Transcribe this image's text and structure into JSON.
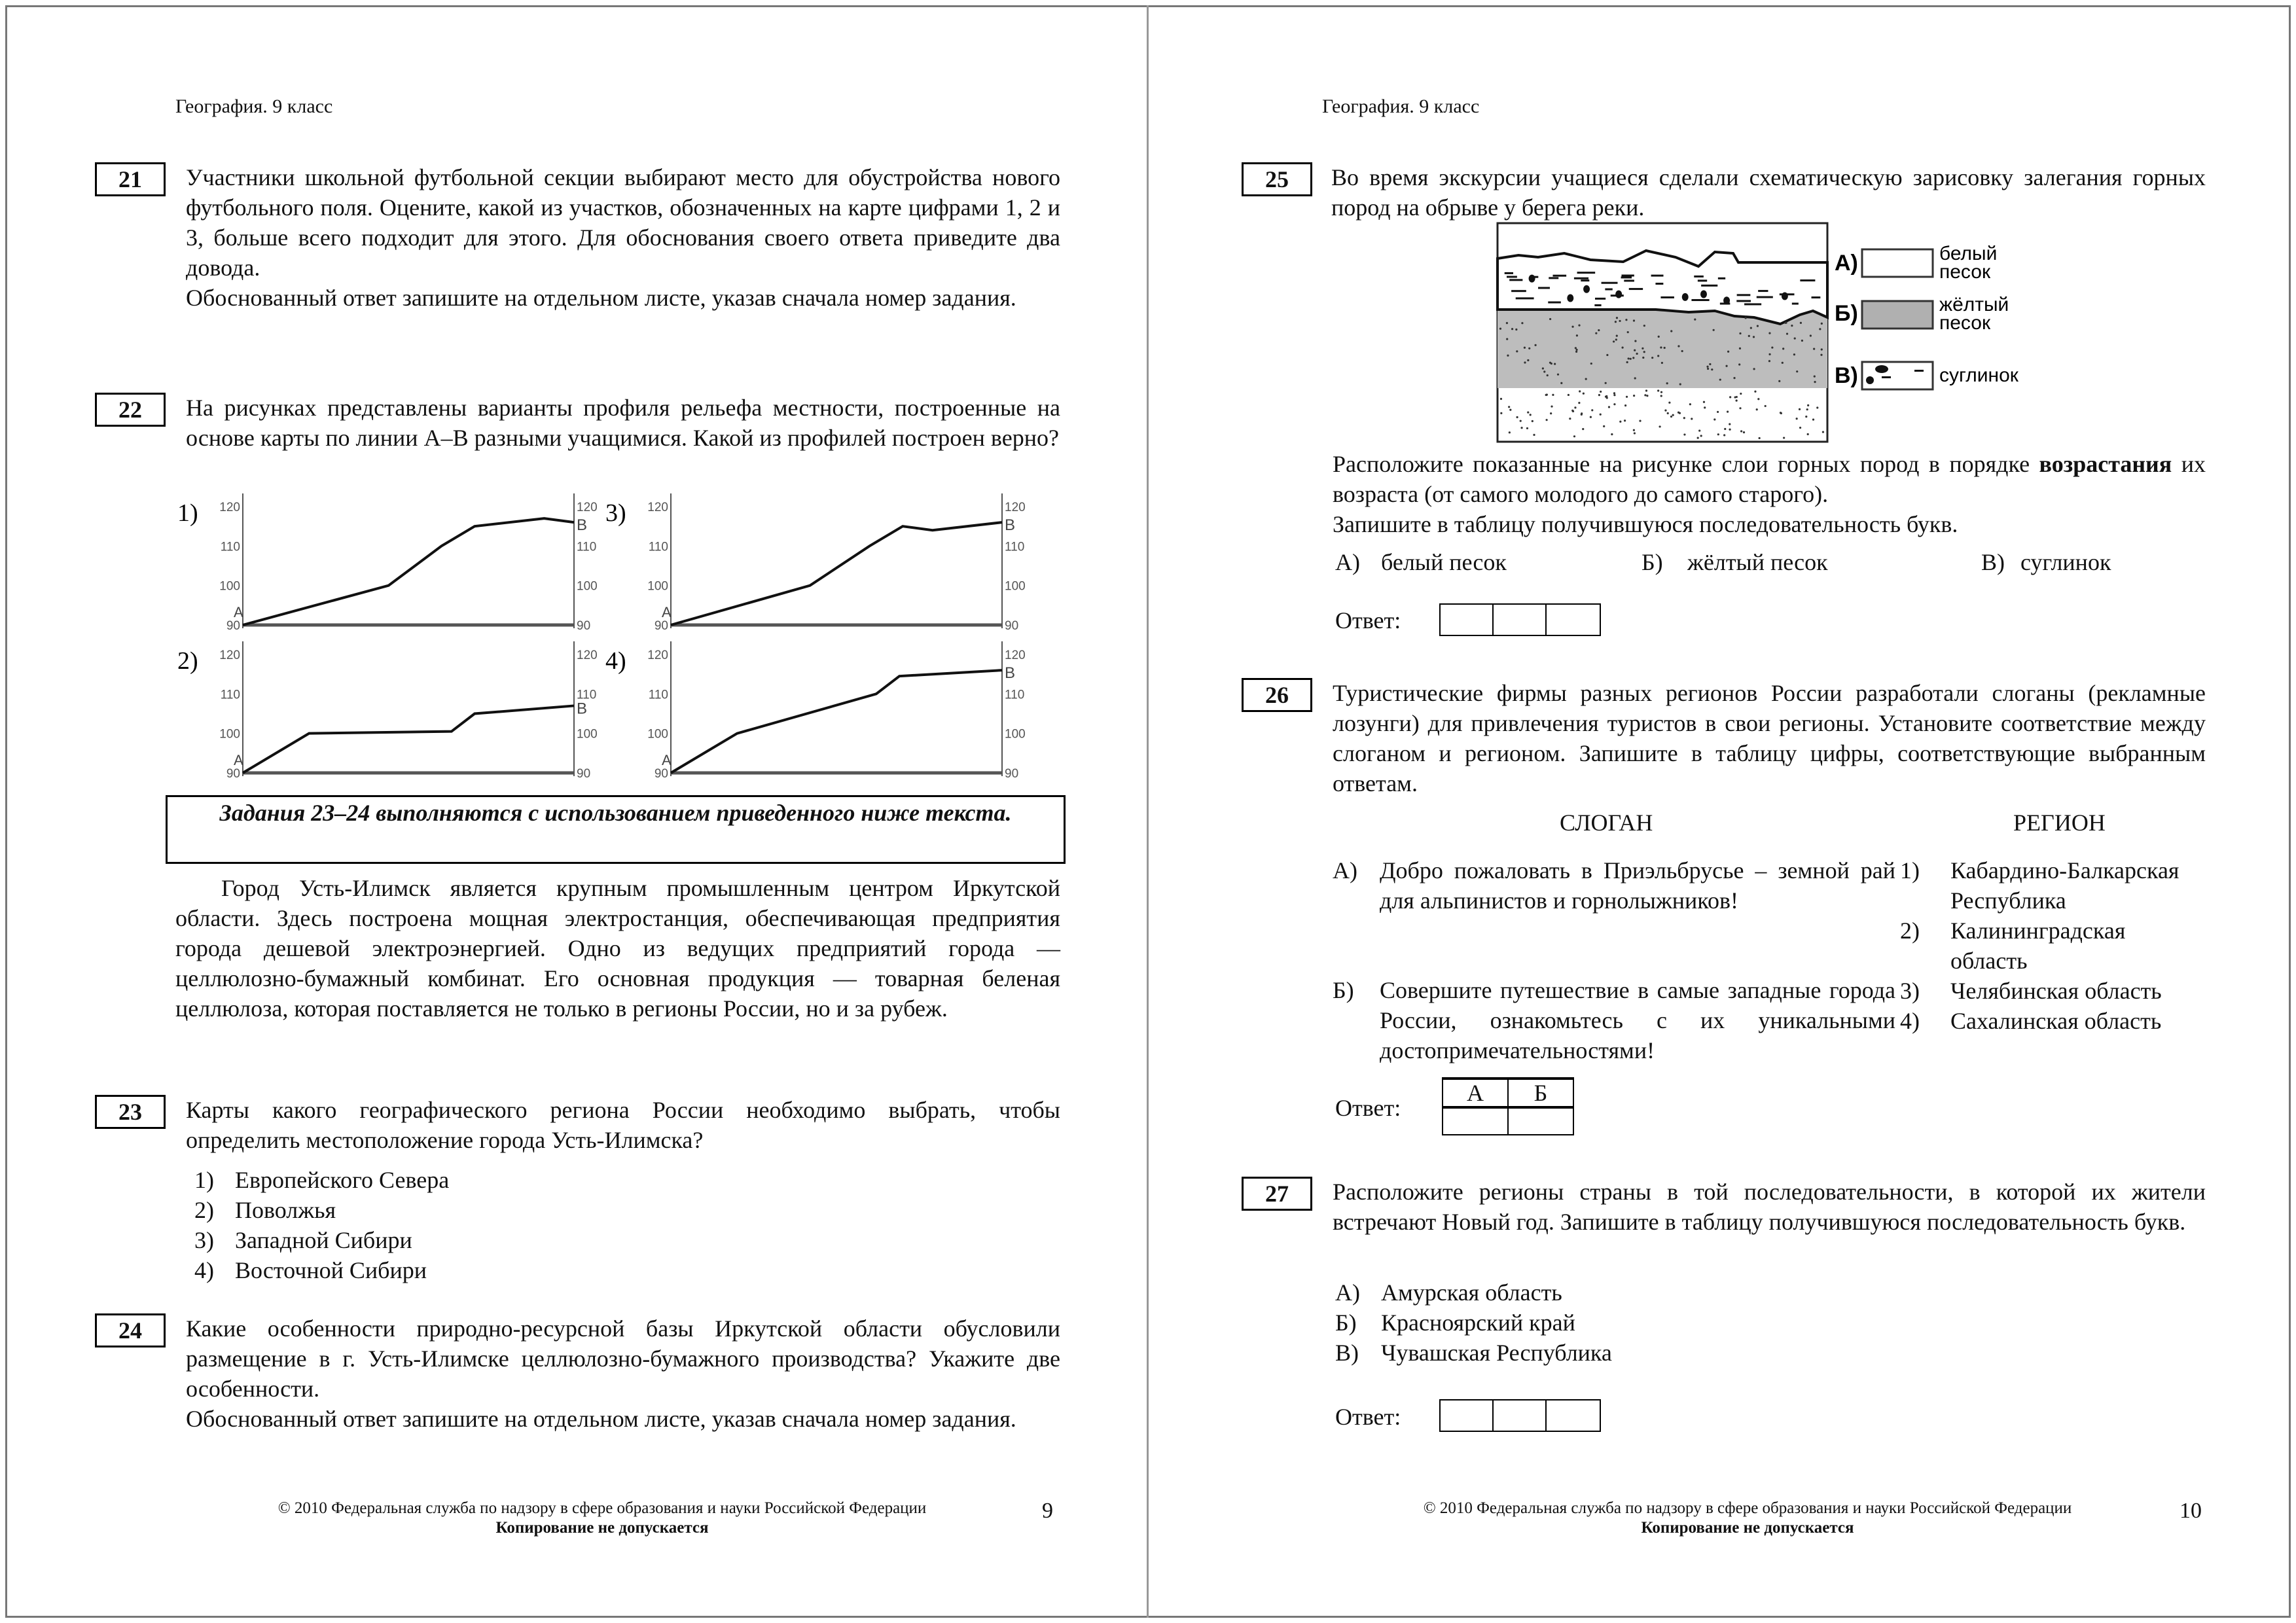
{
  "left_page": {
    "header": "География. 9 класс",
    "q21": {
      "num": "21",
      "text": "Участники школьной футбольной секции выбирают место для обустройства нового футбольного поля. Оцените, какой из участков, обозначенных на карте цифрами 1, 2 и 3, больше всего подходит для этого. Для обоснования своего ответа приведите два довода.",
      "note": "Обоснованный ответ запишите на отдельном листе, указав сначала номер задания."
    },
    "q22": {
      "num": "22",
      "text": "На рисунках представлены варианты профиля рельефа местности, построенные на основе карты по линии А–В разными учащимися. Какой из профилей построен верно?",
      "profiles": [
        {
          "label": "1)",
          "points": [
            [
              0,
              90
            ],
            [
              44,
              100
            ],
            [
              60,
              110
            ],
            [
              70,
              115
            ],
            [
              91,
              117
            ],
            [
              100,
              116
            ]
          ]
        },
        {
          "label": "2)",
          "points": [
            [
              0,
              90
            ],
            [
              20,
              100
            ],
            [
              63,
              100.5
            ],
            [
              70,
              105
            ],
            [
              100,
              107
            ]
          ]
        },
        {
          "label": "3)",
          "points": [
            [
              0,
              90
            ],
            [
              42,
              100
            ],
            [
              60,
              110
            ],
            [
              70,
              115
            ],
            [
              79,
              114
            ],
            [
              100,
              116
            ]
          ]
        },
        {
          "label": "4)",
          "points": [
            [
              0,
              90
            ],
            [
              20,
              100
            ],
            [
              62,
              110
            ],
            [
              69,
              114.5
            ],
            [
              100,
              116
            ]
          ]
        }
      ],
      "y_ticks": [
        "90",
        "100",
        "110",
        "120"
      ],
      "start_label": "A",
      "end_label": "B",
      "ylim": [
        90,
        120
      ]
    },
    "task_frame": "Задания 23–24 выполняются с использованием приведенного ниже текста.",
    "passage": "Город Усть-Илимск является крупным промышленным центром Иркутской области. Здесь построена мощная электростанция, обеспечивающая предприятия города дешевой электроэнергией. Одно из ведущих предприятий города — целлюлозно-бумажный комбинат. Его основная продукция — товарная беленая целлюлоза, которая поставляется не только в регионы России, но и за рубеж.",
    "q23": {
      "num": "23",
      "text": "Карты какого географического региона России необходимо выбрать, чтобы определить местоположение города Усть-Илимска?",
      "options": [
        {
          "n": "1)",
          "t": "Европейского Севера"
        },
        {
          "n": "2)",
          "t": "Поволжья"
        },
        {
          "n": "3)",
          "t": "Западной Сибири"
        },
        {
          "n": "4)",
          "t": "Восточной Сибири"
        }
      ]
    },
    "q24": {
      "num": "24",
      "text": "Какие особенности природно-ресурсной базы Иркутской области обусловили размещение в г. Усть-Илимске целлюлозно-бумажного производства? Укажите две особенности.",
      "note": "Обоснованный ответ запишите на отдельном листе, указав сначала номер задания."
    },
    "footer": {
      "line1": "© 2010  Федеральная служба по надзору в сфере образования и науки Российской Федерации",
      "line2": "Копирование не допускается",
      "page": "9"
    }
  },
  "right_page": {
    "header": "География. 9 класс",
    "q25": {
      "num": "25",
      "text": "Во время экскурсии учащиеся сделали схематическую зарисовку залегания горных пород на обрыве у берега реки.",
      "legend": [
        {
          "key": "А)",
          "l1": "белый",
          "l2": "песок"
        },
        {
          "key": "Б)",
          "l1": "жёлтый",
          "l2": "песок"
        },
        {
          "key": "В)",
          "l1": "суглинок",
          "l2": ""
        }
      ],
      "task_pre": "Расположите показанные на рисунке слои горных пород в порядке ",
      "task_bold": "возрастания",
      "task_post": " их возраста (от самого молодого до самого старого).",
      "task2": "Запишите в таблицу получившуюся последовательность букв.",
      "options": [
        {
          "n": "А)",
          "t": "белый песок"
        },
        {
          "n": "Б)",
          "t": "жёлтый песок"
        },
        {
          "n": "В)",
          "t": "суглинок"
        }
      ],
      "answer_label": "Ответ:"
    },
    "q26": {
      "num": "26",
      "text": "Туристические фирмы разных регионов России разработали слоганы (рекламные лозунги) для привлечения туристов в свои регионы. Установите соответствие между слоганом и регионом. Запишите в таблицу цифры, соответствующие выбранным ответам.",
      "col_slogan": "СЛОГАН",
      "col_region": "РЕГИОН",
      "slogans": [
        {
          "n": "А)",
          "t": "Добро пожаловать в Приэльбрусье – земной рай для альпинистов и горнолыжников!"
        },
        {
          "n": "Б)",
          "t": "Совершите путешествие в самые западные города России, ознакомьтесь с их уникальными достопримечательностями!"
        }
      ],
      "regions": [
        {
          "n": "1)",
          "t": "Кабардино-Балкарская Республика"
        },
        {
          "n": "2)",
          "t": "Калининградская область"
        },
        {
          "n": "3)",
          "t": "Челябинская область"
        },
        {
          "n": "4)",
          "t": "Сахалинская область"
        }
      ],
      "answer_label": "Ответ:",
      "answer_cols": [
        "А",
        "Б"
      ]
    },
    "q27": {
      "num": "27",
      "text": "Расположите регионы страны в той последовательности, в которой их жители встречают Новый год. Запишите в таблицу получившуюся последовательность букв.",
      "options": [
        {
          "n": "А)",
          "t": "Амурская область"
        },
        {
          "n": "Б)",
          "t": "Красноярский край"
        },
        {
          "n": "В)",
          "t": "Чувашская Республика"
        }
      ],
      "answer_label": "Ответ:"
    },
    "footer": {
      "line1": "© 2010  Федеральная служба по надзору в сфере образования и науки Российской Федерации",
      "line2": "Копирование не допускается",
      "page": "10"
    }
  }
}
